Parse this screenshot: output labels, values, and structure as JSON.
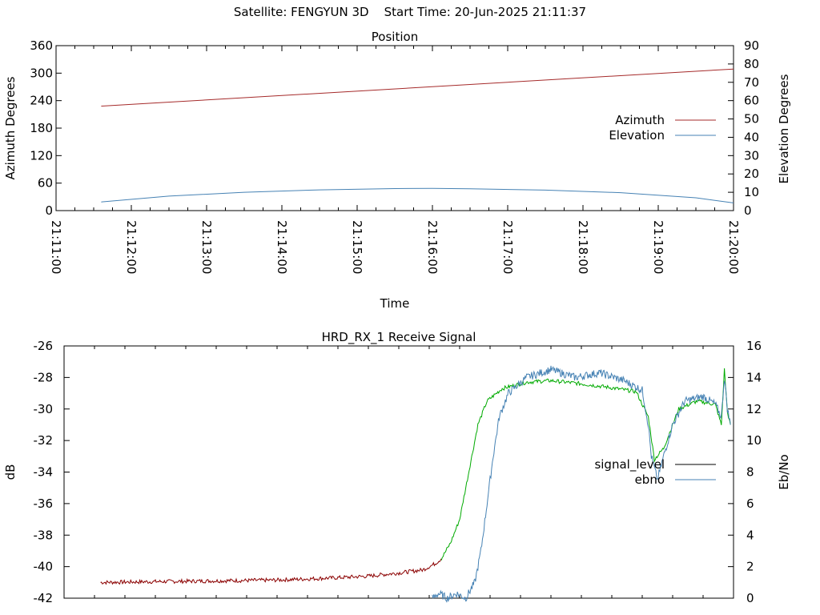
{
  "header": {
    "satellite": "Satellite: FENGYUN 3D",
    "start_time": "Start Time: 20-Jun-2025 21:11:37"
  },
  "chart_data": [
    {
      "type": "line",
      "title": "Position",
      "xlabel": "Time",
      "ylabel": "Azimuth Degrees",
      "y2label": "Elevation Degrees",
      "x_ticks": [
        "21:11:00",
        "21:12:00",
        "21:13:00",
        "21:14:00",
        "21:15:00",
        "21:16:00",
        "21:17:00",
        "21:18:00",
        "21:19:00",
        "21:20:00"
      ],
      "x_range_minutes": [
        0,
        9
      ],
      "ylim": [
        0,
        360
      ],
      "y_ticks": [
        0,
        60,
        120,
        180,
        240,
        300,
        360
      ],
      "y2lim": [
        0,
        90
      ],
      "y2_ticks": [
        0,
        10,
        20,
        30,
        40,
        50,
        60,
        70,
        80,
        90
      ],
      "grid": false,
      "legend_position": "right",
      "series": [
        {
          "name": "Azimuth",
          "axis": "y",
          "color": "#a52a2a",
          "points": [
            [
              0.6,
              228
            ],
            [
              9.0,
              309
            ]
          ]
        },
        {
          "name": "Elevation",
          "axis": "y2",
          "color": "#4682b4",
          "points": [
            [
              0.6,
              4.7
            ],
            [
              1.5,
              7.9
            ],
            [
              2.5,
              10.0
            ],
            [
              3.5,
              11.3
            ],
            [
              4.5,
              12.0
            ],
            [
              5.0,
              12.1
            ],
            [
              5.5,
              11.9
            ],
            [
              6.5,
              11.2
            ],
            [
              7.5,
              9.8
            ],
            [
              8.5,
              7.0
            ],
            [
              9.0,
              4.2
            ]
          ]
        }
      ]
    },
    {
      "type": "line",
      "title": "HRD_RX_1 Receive Signal",
      "ylabel": "dB",
      "y2label": "Eb/No",
      "ylim": [
        -42,
        -26
      ],
      "y_ticks": [
        -42,
        -40,
        -38,
        -36,
        -34,
        -32,
        -30,
        -28,
        -26
      ],
      "y2lim": [
        0,
        16
      ],
      "y2_ticks": [
        0,
        2,
        4,
        6,
        8,
        10,
        12,
        14,
        16
      ],
      "grid": false,
      "legend_position": "right",
      "series": [
        {
          "name": "signal_level",
          "axis": "y",
          "legend_color": "#000000",
          "segments": [
            {
              "color": "#8b0000",
              "points": [
                [
                  0.6,
                  -41.0
                ],
                [
                  1.5,
                  -40.95
                ],
                [
                  2.5,
                  -40.9
                ],
                [
                  3.5,
                  -40.85
                ],
                [
                  4.5,
                  -40.7
                ],
                [
                  5.0,
                  -40.6
                ],
                [
                  5.5,
                  -40.4
                ],
                [
                  5.9,
                  -40.2
                ],
                [
                  6.1,
                  -39.8
                ],
                [
                  6.2,
                  -39.5
                ]
              ]
            },
            {
              "color": "#00aa00",
              "points": [
                [
                  6.2,
                  -39.5
                ],
                [
                  6.35,
                  -38.5
                ],
                [
                  6.5,
                  -37.0
                ],
                [
                  6.6,
                  -35.0
                ],
                [
                  6.7,
                  -33.0
                ],
                [
                  6.8,
                  -31.0
                ],
                [
                  6.95,
                  -29.5
                ],
                [
                  7.2,
                  -28.7
                ],
                [
                  7.6,
                  -28.3
                ],
                [
                  8.0,
                  -28.2
                ],
                [
                  8.5,
                  -28.4
                ],
                [
                  8.9,
                  -28.6
                ],
                [
                  9.4,
                  -28.9
                ],
                [
                  9.6,
                  -30.5
                ],
                [
                  9.7,
                  -33.2
                ],
                [
                  9.85,
                  -32.5
                ],
                [
                  10.1,
                  -30.0
                ],
                [
                  10.4,
                  -29.5
                ],
                [
                  10.7,
                  -29.7
                ],
                [
                  10.8,
                  -31.0
                ],
                [
                  10.85,
                  -27.5
                ],
                [
                  10.9,
                  -30.2
                ],
                [
                  10.95,
                  -31.0
                ]
              ]
            }
          ]
        },
        {
          "name": "ebno",
          "axis": "y2",
          "color": "#4682b4",
          "points": [
            [
              6.05,
              0.0
            ],
            [
              6.15,
              0.3
            ],
            [
              6.3,
              0.0
            ],
            [
              6.45,
              0.3
            ],
            [
              6.6,
              0.0
            ],
            [
              6.75,
              1.0
            ],
            [
              6.85,
              3.0
            ],
            [
              6.95,
              6.0
            ],
            [
              7.05,
              9.0
            ],
            [
              7.15,
              11.5
            ],
            [
              7.3,
              13.0
            ],
            [
              7.6,
              14.0
            ],
            [
              8.0,
              14.5
            ],
            [
              8.4,
              14.0
            ],
            [
              8.8,
              14.3
            ],
            [
              9.2,
              13.8
            ],
            [
              9.5,
              13.2
            ],
            [
              9.6,
              11.0
            ],
            [
              9.65,
              9.0
            ],
            [
              9.75,
              7.5
            ],
            [
              9.85,
              9.0
            ],
            [
              10.0,
              11.0
            ],
            [
              10.2,
              12.5
            ],
            [
              10.5,
              12.8
            ],
            [
              10.7,
              12.3
            ],
            [
              10.8,
              11.5
            ],
            [
              10.85,
              14.0
            ],
            [
              10.9,
              12.0
            ],
            [
              10.95,
              11.0
            ]
          ]
        }
      ]
    }
  ]
}
